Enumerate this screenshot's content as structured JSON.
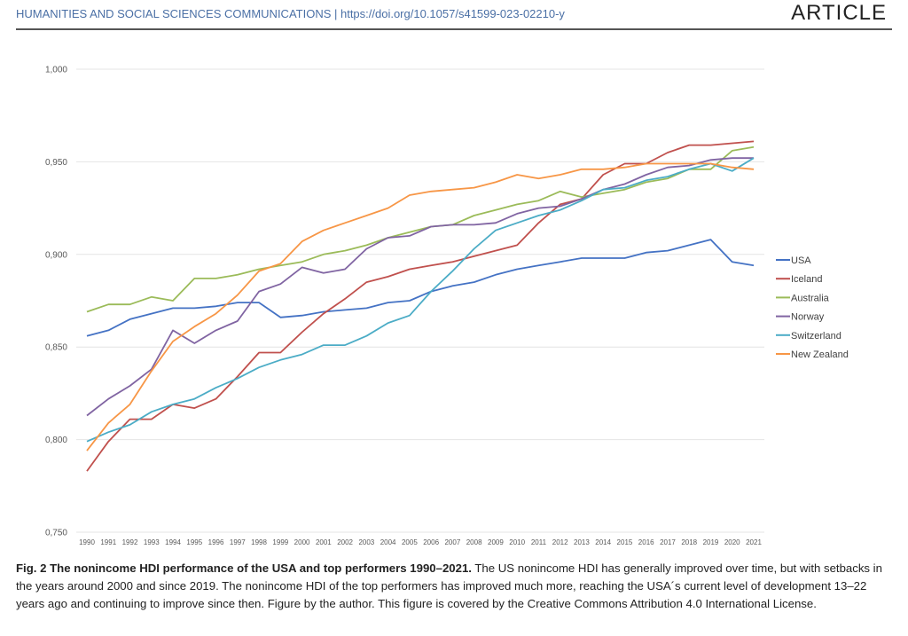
{
  "header": {
    "journal": "HUMANITIES AND SOCIAL SCIENCES COMMUNICATIONS | https://doi.org/10.1057/s41599-023-02210-y",
    "section": "ARTICLE"
  },
  "caption": {
    "bold": "Fig. 2 The nonincome HDI performance of the USA and top performers 1990–2021.",
    "text": " The US nonincome HDI has generally improved over time, but with setbacks in the years around 2000 and since 2019. The nonincome HDI of the top performers has improved much more, reaching the USA´s current level of development 13–22 years ago and continuing to improve since then. Figure by the author. This figure is covered by the Creative Commons Attribution 4.0 International License."
  },
  "chart_data": {
    "type": "line",
    "title": "",
    "xlabel": "",
    "ylabel": "",
    "ylim": [
      0.75,
      1.0
    ],
    "yticks": [
      0.75,
      0.8,
      0.85,
      0.9,
      0.95,
      1.0
    ],
    "ytick_labels": [
      "0,750",
      "0,800",
      "0,850",
      "0,900",
      "0,950",
      "1,000"
    ],
    "grid": true,
    "legend_position": "right",
    "x": [
      "1990",
      "1991",
      "1992",
      "1993",
      "1994",
      "1995",
      "1996",
      "1997",
      "1998",
      "1999",
      "2000",
      "2001",
      "2002",
      "2003",
      "2004",
      "2005",
      "2006",
      "2007",
      "2008",
      "2009",
      "2010",
      "2011",
      "2012",
      "2013",
      "2014",
      "2015",
      "2016",
      "2017",
      "2018",
      "2019",
      "2020",
      "2021"
    ],
    "series": [
      {
        "name": "USA",
        "color": "#4472C4",
        "values": [
          0.856,
          0.859,
          0.865,
          0.868,
          0.871,
          0.871,
          0.872,
          0.874,
          0.874,
          0.866,
          0.867,
          0.869,
          0.87,
          0.871,
          0.874,
          0.875,
          0.88,
          0.883,
          0.885,
          0.889,
          0.892,
          0.894,
          0.896,
          0.898,
          0.898,
          0.898,
          0.901,
          0.902,
          0.905,
          0.908,
          0.896,
          0.894
        ]
      },
      {
        "name": "Iceland",
        "color": "#C0504D",
        "values": [
          0.783,
          0.799,
          0.811,
          0.811,
          0.819,
          0.817,
          0.822,
          0.834,
          0.847,
          0.847,
          0.858,
          0.868,
          0.876,
          0.885,
          0.888,
          0.892,
          0.894,
          0.896,
          0.899,
          0.902,
          0.905,
          0.917,
          0.927,
          0.93,
          0.943,
          0.949,
          0.949,
          0.955,
          0.959,
          0.959,
          0.96,
          0.961
        ]
      },
      {
        "name": "Australia",
        "color": "#9BBB59",
        "values": [
          0.869,
          0.873,
          0.873,
          0.877,
          0.875,
          0.887,
          0.887,
          0.889,
          0.892,
          0.894,
          0.896,
          0.9,
          0.902,
          0.905,
          0.909,
          0.912,
          0.915,
          0.916,
          0.921,
          0.924,
          0.927,
          0.929,
          0.934,
          0.931,
          0.933,
          0.935,
          0.939,
          0.941,
          0.946,
          0.946,
          0.956,
          0.958
        ]
      },
      {
        "name": "Norway",
        "color": "#8064A2",
        "values": [
          0.813,
          0.822,
          0.829,
          0.838,
          0.859,
          0.852,
          0.859,
          0.864,
          0.88,
          0.884,
          0.893,
          0.89,
          0.892,
          0.903,
          0.909,
          0.91,
          0.915,
          0.916,
          0.916,
          0.917,
          0.922,
          0.925,
          0.926,
          0.93,
          0.935,
          0.938,
          0.943,
          0.947,
          0.948,
          0.951,
          0.952,
          0.952
        ]
      },
      {
        "name": "Switzerland",
        "color": "#4BACC6",
        "values": [
          0.799,
          0.804,
          0.808,
          0.815,
          0.819,
          0.822,
          0.828,
          0.833,
          0.839,
          0.843,
          0.846,
          0.851,
          0.851,
          0.856,
          0.863,
          0.867,
          0.88,
          0.891,
          0.903,
          0.913,
          0.917,
          0.921,
          0.924,
          0.929,
          0.935,
          0.936,
          0.94,
          0.942,
          0.946,
          0.949,
          0.945,
          0.952
        ]
      },
      {
        "name": "New Zealand",
        "color": "#F79646",
        "values": [
          0.794,
          0.809,
          0.819,
          0.837,
          0.853,
          0.861,
          0.868,
          0.878,
          0.891,
          0.895,
          0.907,
          0.913,
          0.917,
          0.921,
          0.925,
          0.932,
          0.934,
          0.935,
          0.936,
          0.939,
          0.943,
          0.941,
          0.943,
          0.946,
          0.946,
          0.947,
          0.949,
          0.949,
          0.949,
          0.949,
          0.947,
          0.946
        ]
      }
    ]
  }
}
